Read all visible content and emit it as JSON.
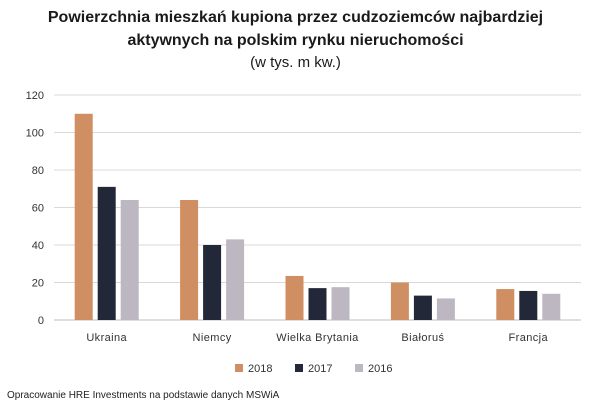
{
  "chart_data": {
    "type": "bar",
    "title_line1": "Powierzchnia mieszkań kupiona przez cudzoziemców najbardziej",
    "title_line2": "aktywnych na polskim rynku nieruchomości",
    "subtitle": "(w tys. m kw.)",
    "xlabel": "",
    "ylabel": "",
    "ylim": [
      0,
      120
    ],
    "yticks": [
      0,
      20,
      40,
      60,
      80,
      100,
      120
    ],
    "grid": true,
    "legend_position": "bottom",
    "categories": [
      "Ukraina",
      "Niemcy",
      "Wielka Brytania",
      "Białoruś",
      "Francja"
    ],
    "series": [
      {
        "name": "2018",
        "color": "#cf8f63",
        "values": [
          110,
          64,
          23.5,
          20,
          16.5
        ]
      },
      {
        "name": "2017",
        "color": "#222838",
        "values": [
          71,
          40,
          17,
          13,
          15.5
        ]
      },
      {
        "name": "2016",
        "color": "#bdb7c1",
        "values": [
          64,
          43,
          17.5,
          11.5,
          14
        ]
      }
    ]
  },
  "footer": "Opracowanie HRE Investments na podstawie danych MSWiA"
}
